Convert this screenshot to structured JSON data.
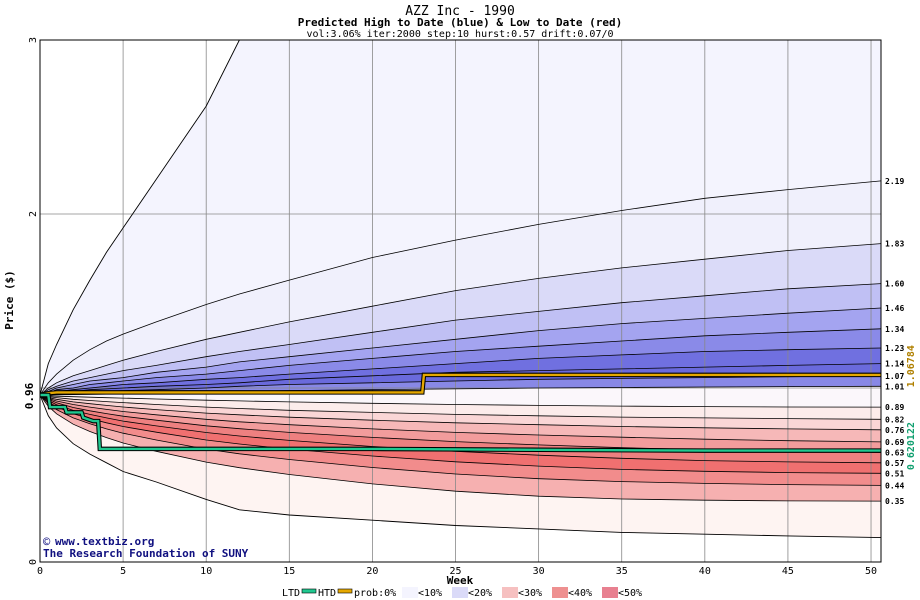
{
  "chart_data": {
    "type": "area",
    "title": "AZZ Inc - 1990",
    "subtitle": "Predicted High to Date (blue) &  Low to Date (red)",
    "params": "vol:3.06% iter:2000 step:10 hurst:0.57 drift:0.07/0",
    "xlabel": "Week",
    "ylabel": "Price ($)",
    "xlim": [
      0,
      50.6
    ],
    "ylim": [
      0,
      3
    ],
    "x_ticks": [
      0,
      5,
      10,
      15,
      20,
      25,
      30,
      35,
      40,
      45,
      50
    ],
    "y_ticks": [
      0,
      1,
      2,
      3
    ],
    "y_tick_labels": [
      "0",
      "",
      "2",
      "3"
    ],
    "grid": true,
    "start_price": 0.96,
    "start_price_label": "0.96",
    "series_x": [
      0,
      0.5,
      1,
      2,
      3,
      4,
      5,
      7,
      10,
      12,
      15,
      20,
      25,
      30,
      35,
      40,
      45,
      50.6
    ],
    "high_quantiles": [
      {
        "label": "2.19",
        "end": 2.19,
        "values": [
          0.96,
          1.03,
          1.08,
          1.16,
          1.22,
          1.27,
          1.31,
          1.38,
          1.48,
          1.54,
          1.62,
          1.75,
          1.85,
          1.94,
          2.02,
          2.09,
          2.14,
          2.19
        ]
      },
      {
        "label": "1.83",
        "end": 1.83,
        "values": [
          0.96,
          1.0,
          1.03,
          1.07,
          1.1,
          1.13,
          1.16,
          1.21,
          1.28,
          1.32,
          1.38,
          1.47,
          1.56,
          1.63,
          1.69,
          1.74,
          1.79,
          1.83
        ]
      },
      {
        "label": "1.60",
        "end": 1.6,
        "values": [
          0.96,
          0.99,
          1.01,
          1.04,
          1.06,
          1.08,
          1.1,
          1.13,
          1.18,
          1.21,
          1.25,
          1.32,
          1.39,
          1.44,
          1.49,
          1.53,
          1.57,
          1.6
        ]
      },
      {
        "label": "1.46",
        "end": 1.46,
        "values": [
          0.96,
          0.98,
          1.0,
          1.02,
          1.04,
          1.05,
          1.06,
          1.09,
          1.12,
          1.15,
          1.18,
          1.23,
          1.28,
          1.33,
          1.37,
          1.4,
          1.43,
          1.46
        ]
      },
      {
        "label": "1.34",
        "end": 1.34,
        "values": [
          0.96,
          0.97,
          0.99,
          1.0,
          1.02,
          1.03,
          1.04,
          1.06,
          1.08,
          1.1,
          1.13,
          1.17,
          1.21,
          1.24,
          1.27,
          1.3,
          1.32,
          1.34
        ]
      },
      {
        "label": "1.23",
        "end": 1.23,
        "values": [
          0.96,
          0.97,
          0.98,
          0.99,
          1.0,
          1.01,
          1.02,
          1.03,
          1.05,
          1.06,
          1.08,
          1.11,
          1.14,
          1.17,
          1.19,
          1.21,
          1.22,
          1.23
        ]
      },
      {
        "label": "1.14",
        "end": 1.14,
        "values": [
          0.96,
          0.965,
          0.97,
          0.98,
          0.99,
          0.995,
          1.0,
          1.01,
          1.02,
          1.03,
          1.05,
          1.07,
          1.09,
          1.1,
          1.11,
          1.12,
          1.13,
          1.14
        ]
      },
      {
        "label": "1.07",
        "end": 1.07,
        "values": [
          0.96,
          0.962,
          0.965,
          0.97,
          0.975,
          0.98,
          0.985,
          0.99,
          1.0,
          1.01,
          1.02,
          1.03,
          1.04,
          1.05,
          1.055,
          1.06,
          1.065,
          1.07
        ]
      },
      {
        "label": "1.01",
        "end": 1.01,
        "values": [
          0.96,
          0.96,
          0.961,
          0.962,
          0.963,
          0.965,
          0.967,
          0.97,
          0.975,
          0.98,
          0.985,
          0.99,
          0.995,
          1.0,
          1.003,
          1.006,
          1.008,
          1.01
        ]
      }
    ],
    "high_envelope": {
      "values": [
        0.96,
        1.14,
        1.25,
        1.45,
        1.62,
        1.78,
        1.92,
        2.2,
        2.62,
        3.0
      ]
    },
    "low_quantiles": [
      {
        "label": "0.89",
        "end": 0.89,
        "values": [
          0.96,
          0.955,
          0.953,
          0.95,
          0.947,
          0.944,
          0.942,
          0.937,
          0.93,
          0.926,
          0.92,
          0.912,
          0.905,
          0.9,
          0.896,
          0.893,
          0.891,
          0.89
        ]
      },
      {
        "label": "0.82",
        "end": 0.82,
        "values": [
          0.96,
          0.95,
          0.945,
          0.935,
          0.928,
          0.922,
          0.916,
          0.905,
          0.89,
          0.882,
          0.872,
          0.86,
          0.848,
          0.84,
          0.833,
          0.828,
          0.824,
          0.82
        ]
      },
      {
        "label": "0.76",
        "end": 0.76,
        "values": [
          0.96,
          0.945,
          0.935,
          0.92,
          0.91,
          0.9,
          0.891,
          0.876,
          0.856,
          0.846,
          0.832,
          0.815,
          0.8,
          0.789,
          0.779,
          0.771,
          0.765,
          0.76
        ]
      },
      {
        "label": "0.69",
        "end": 0.69,
        "values": [
          0.96,
          0.94,
          0.925,
          0.905,
          0.89,
          0.877,
          0.865,
          0.846,
          0.82,
          0.806,
          0.789,
          0.765,
          0.745,
          0.73,
          0.717,
          0.706,
          0.697,
          0.69
        ]
      },
      {
        "label": "0.63",
        "end": 0.63,
        "values": [
          0.96,
          0.935,
          0.915,
          0.888,
          0.869,
          0.853,
          0.838,
          0.815,
          0.783,
          0.766,
          0.745,
          0.716,
          0.692,
          0.673,
          0.657,
          0.645,
          0.636,
          0.63
        ]
      },
      {
        "label": "0.57",
        "end": 0.57,
        "values": [
          0.96,
          0.928,
          0.904,
          0.871,
          0.848,
          0.828,
          0.81,
          0.782,
          0.744,
          0.724,
          0.699,
          0.664,
          0.636,
          0.614,
          0.596,
          0.583,
          0.575,
          0.57
        ]
      },
      {
        "label": "0.51",
        "end": 0.51,
        "values": [
          0.96,
          0.92,
          0.892,
          0.852,
          0.824,
          0.8,
          0.779,
          0.746,
          0.701,
          0.678,
          0.649,
          0.609,
          0.576,
          0.551,
          0.532,
          0.521,
          0.514,
          0.51
        ]
      },
      {
        "label": "0.44",
        "end": 0.44,
        "values": [
          0.96,
          0.91,
          0.876,
          0.828,
          0.794,
          0.765,
          0.74,
          0.701,
          0.649,
          0.622,
          0.589,
          0.543,
          0.506,
          0.479,
          0.462,
          0.452,
          0.445,
          0.44
        ]
      },
      {
        "label": "0.35",
        "end": 0.35,
        "values": [
          0.96,
          0.895,
          0.852,
          0.792,
          0.75,
          0.715,
          0.684,
          0.636,
          0.574,
          0.542,
          0.503,
          0.449,
          0.407,
          0.378,
          0.362,
          0.355,
          0.351,
          0.35
        ]
      }
    ],
    "low_envelope": {
      "values": [
        0.96,
        0.84,
        0.77,
        0.68,
        0.62,
        0.57,
        0.52,
        0.46,
        0.36,
        0.3,
        0.27,
        0.24,
        0.21,
        0.19,
        0.17,
        0.16,
        0.15,
        0.14
      ]
    },
    "htd_line": {
      "name": "HTD",
      "color": "#e6a800",
      "x": [
        0,
        0.5,
        1,
        2,
        3,
        4,
        5,
        10,
        15,
        20,
        23,
        23.1,
        30,
        35,
        40,
        45,
        50.6
      ],
      "y": [
        0.96,
        0.97,
        0.975,
        0.975,
        0.975,
        0.975,
        0.975,
        0.975,
        0.975,
        0.975,
        0.975,
        1.075,
        1.075,
        1.075,
        1.075,
        1.075,
        1.075
      ]
    },
    "ltd_line": {
      "name": "LTD",
      "color": "#20c890",
      "x": [
        0,
        0.5,
        0.6,
        1.5,
        1.6,
        2.5,
        2.6,
        3.2,
        3.5,
        3.6,
        10,
        20,
        30,
        40,
        50.6
      ],
      "y": [
        0.96,
        0.96,
        0.89,
        0.89,
        0.86,
        0.86,
        0.83,
        0.81,
        0.81,
        0.65,
        0.65,
        0.65,
        0.645,
        0.64,
        0.64
      ]
    },
    "right_annotations": [
      {
        "text": "1.06784",
        "value": 1.06784,
        "color": "#b08000"
      },
      {
        "text": "0.620122",
        "value": 0.620122,
        "color": "#10a070"
      }
    ],
    "band_colors": {
      "high": [
        "#f0f0fc",
        "#dadaf8",
        "#c0c0f4",
        "#a4a4f0",
        "#8a8ae8",
        "#7070e0",
        "#6a6adc",
        "#8888e6"
      ],
      "low": [
        "#fceceb",
        "#fad6d6",
        "#f6b8b8",
        "#f29c9c",
        "#ee8080",
        "#f07070",
        "#f28c8c",
        "#f6b0b0"
      ],
      "outer_high": "#f4f4fe",
      "outer_low": "#fef4f2"
    },
    "legend": {
      "ltd_label": "LTD",
      "htd_label": "HTD",
      "prob_label": "prob:0%",
      "items": [
        {
          "label": "<10%",
          "color": "#f4f4fe"
        },
        {
          "label": "<20%",
          "color": "#dadaf8"
        },
        {
          "label": "<30%",
          "color": "#f6c0c0"
        },
        {
          "label": "<40%",
          "color": "#ee9090"
        },
        {
          "label": "<50%",
          "color": "#e88090"
        }
      ]
    },
    "watermark": {
      "site": "www.textbiz.org",
      "org": "The Research Foundation of SUNY",
      "color": "#101080"
    }
  }
}
